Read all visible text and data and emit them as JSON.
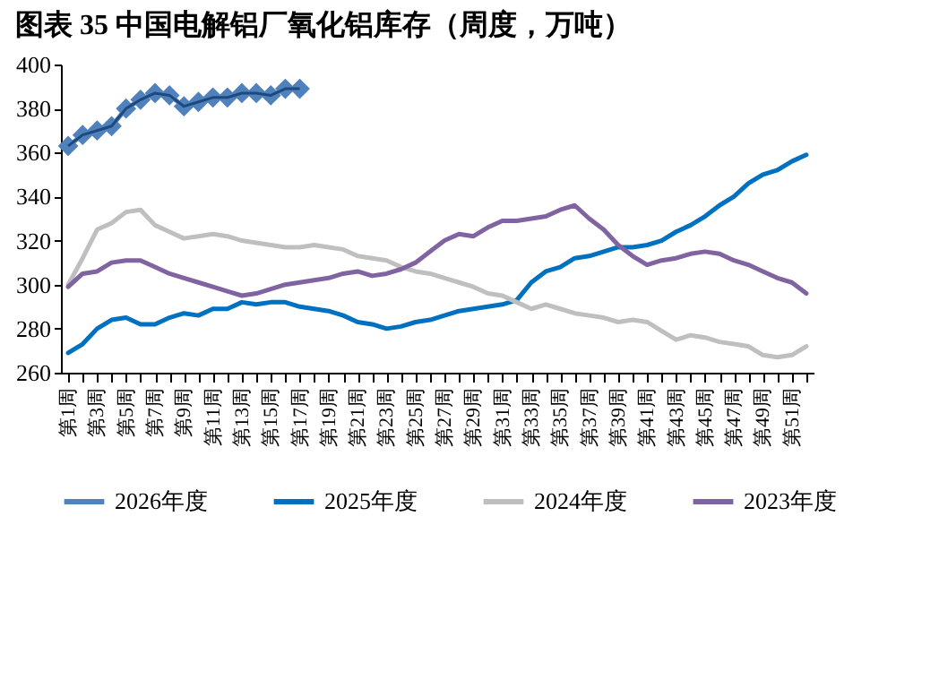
{
  "chart_data": {
    "type": "line",
    "title": "图表 35    中国电解铝厂氧化铝库存（周度，万吨）",
    "categories": [
      "第1周",
      null,
      "第3周",
      null,
      "第5周",
      null,
      "第7周",
      null,
      "第9周",
      null,
      "第11周",
      null,
      "第13周",
      null,
      "第15周",
      null,
      "第17周",
      null,
      "第19周",
      null,
      "第21周",
      null,
      "第23周",
      null,
      "第25周",
      null,
      "第27周",
      null,
      "第29周",
      null,
      "第31周",
      null,
      "第33周",
      null,
      "第35周",
      null,
      "第37周",
      null,
      "第39周",
      null,
      "第41周",
      null,
      "第43周",
      null,
      "第45周",
      null,
      "第47周",
      null,
      "第49周",
      null,
      "第51周",
      null
    ],
    "series": [
      {
        "name": "2026年度",
        "color": "#4f81bd",
        "marker": "diamond",
        "values": [
          363,
          368,
          370,
          372,
          380,
          384,
          387,
          386,
          381,
          383,
          385,
          385,
          387,
          387,
          386,
          389,
          389,
          null,
          null,
          null,
          null,
          null,
          null,
          null,
          null,
          null,
          null,
          null,
          null,
          null,
          null,
          null,
          null,
          null,
          null,
          null,
          null,
          null,
          null,
          null,
          null,
          null,
          null,
          null,
          null,
          null,
          null,
          null,
          null,
          null,
          null,
          null
        ]
      },
      {
        "name": "2025年度",
        "color": "#0070c0",
        "marker": "none",
        "values": [
          269,
          273,
          280,
          284,
          285,
          282,
          282,
          285,
          287,
          286,
          289,
          289,
          292,
          291,
          292,
          292,
          290,
          289,
          288,
          286,
          283,
          282,
          280,
          281,
          283,
          284,
          286,
          288,
          289,
          290,
          291,
          293,
          301,
          306,
          308,
          312,
          313,
          315,
          317,
          317,
          318,
          320,
          324,
          327,
          331,
          336,
          340,
          346,
          350,
          352,
          356,
          359
        ]
      },
      {
        "name": "2024年度",
        "color": "#bfbfbf",
        "marker": "none",
        "values": [
          300,
          312,
          325,
          328,
          333,
          334,
          327,
          324,
          321,
          322,
          323,
          322,
          320,
          319,
          318,
          317,
          317,
          318,
          317,
          316,
          313,
          312,
          311,
          308,
          306,
          305,
          303,
          301,
          299,
          296,
          295,
          292,
          289,
          291,
          289,
          287,
          286,
          285,
          283,
          284,
          283,
          279,
          275,
          277,
          276,
          274,
          273,
          272,
          268,
          267,
          268,
          272
        ]
      },
      {
        "name": "2023年度",
        "color": "#8064a2",
        "marker": "none",
        "values": [
          299,
          305,
          306,
          310,
          311,
          311,
          308,
          305,
          303,
          301,
          299,
          297,
          295,
          296,
          298,
          300,
          301,
          302,
          303,
          305,
          306,
          304,
          305,
          307,
          310,
          315,
          320,
          323,
          322,
          326,
          329,
          329,
          330,
          331,
          334,
          336,
          330,
          325,
          318,
          313,
          309,
          311,
          312,
          314,
          315,
          314,
          311,
          309,
          306,
          303,
          301,
          296
        ]
      }
    ],
    "ylim": [
      260,
      400
    ],
    "yticks": [
      260,
      280,
      300,
      320,
      340,
      360,
      380,
      400
    ],
    "grid": false,
    "legend": "bottom"
  }
}
